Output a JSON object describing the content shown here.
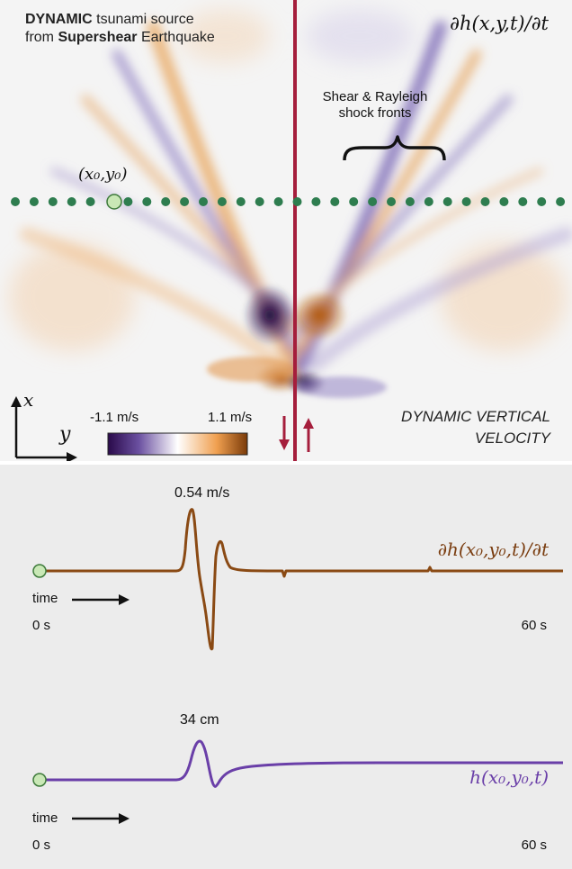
{
  "top_panel": {
    "title_bold_1": "DYNAMIC",
    "title_rest_1": " tsunami source",
    "title_prefix_2": "from ",
    "title_bold_2": "Supershear",
    "title_rest_2": " Earthquake",
    "formula": "∂h(x,y,t)/∂t",
    "point_label": "(x₀,y₀)",
    "shock_label_line1": "Shear & Rayleigh",
    "shock_label_line2": "shock fronts",
    "colorbar_min": "-1.1 m/s",
    "colorbar_max": "1.1 m/s",
    "velocity_label_line1": "DYNAMIC VERTICAL",
    "velocity_label_line2": "VELOCITY",
    "axis_x": "x",
    "axis_y": "y",
    "colors": {
      "fault": "#a51e3c",
      "dots": "#2e7d4f",
      "point": "#c9e8b6"
    }
  },
  "velocity_trace": {
    "peak_label": "0.54 m/s",
    "formula": "∂h(x₀,y₀,t)/∂t",
    "time_label": "time",
    "start_label": "0 s",
    "end_label": "60 s",
    "color": "#8a4a14"
  },
  "height_trace": {
    "peak_label": "34 cm",
    "formula": "h(x₀,y₀,t)",
    "time_label": "time",
    "start_label": "0 s",
    "end_label": "60 s",
    "color": "#6a3fa8"
  }
}
